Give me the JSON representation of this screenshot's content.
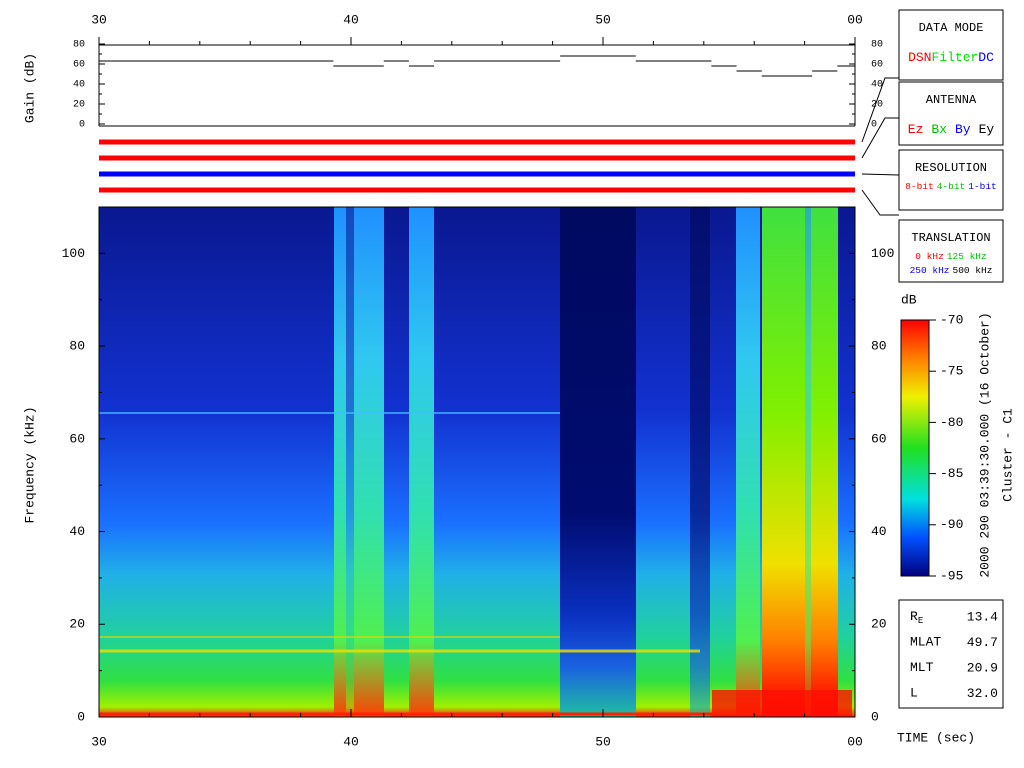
{
  "chart_data": [
    {
      "type": "step",
      "ylabel": "Gain (dB)",
      "color": "#000000",
      "xlim": [
        30,
        60
      ],
      "xticks": [
        30,
        40,
        50,
        {
          "value": 60,
          "label": "00"
        }
      ],
      "xminorticks": [
        32,
        34,
        36,
        38,
        42,
        44,
        46,
        48,
        52,
        54,
        56,
        58
      ],
      "ylim": [
        0,
        80
      ],
      "yticks": [
        0,
        20,
        40,
        60,
        80
      ],
      "yminorticks": [
        10,
        30,
        50,
        70
      ],
      "x": [
        30,
        39.3,
        41.3,
        42.3,
        43.3,
        48.3,
        51.3,
        54.3,
        55.3,
        56.3,
        58.3,
        59.3
      ],
      "values": [
        63,
        58,
        63,
        58,
        63,
        68,
        63,
        58,
        53,
        48,
        53,
        58
      ]
    },
    {
      "type": "spectrogram",
      "ylabel": "Frequency (kHz)",
      "xlabel": "TIME (sec)",
      "xlim": [
        30,
        60
      ],
      "xticks": [
        30,
        40,
        50,
        {
          "value": 60,
          "label": "00"
        }
      ],
      "xminorticks": [
        32,
        34,
        36,
        38,
        42,
        44,
        46,
        48,
        52,
        54,
        56,
        58
      ],
      "ylim": [
        0,
        110
      ],
      "yticks": [
        0,
        20,
        40,
        60,
        80,
        100
      ],
      "yminorticks": [
        10,
        30,
        50,
        70,
        90
      ]
    },
    {
      "type": "colorbar",
      "title": "dB",
      "ylim": [
        -95,
        -70
      ],
      "yticks": [
        -95,
        -90,
        -85,
        -80,
        -75,
        -70
      ]
    }
  ],
  "annotation": {
    "date": "2000 290 03:39:30.000 (16 October)",
    "spacecraft": "Cluster - C1"
  },
  "panels": [
    {
      "title": "DATA MODE",
      "rows": [
        [
          {
            "text": "DSN",
            "color": "#ff0000"
          },
          {
            "text": "Filter",
            "color": "#00e000"
          },
          {
            "text": "DC",
            "color": "#0000ff"
          }
        ]
      ]
    },
    {
      "title": "ANTENNA",
      "rows": [
        [
          {
            "text": "Ez",
            "color": "#ff0000"
          },
          {
            "text": "Bx",
            "color": "#00c000"
          },
          {
            "text": "By",
            "color": "#0000ff"
          },
          {
            "text": "Ey",
            "color": "#000000"
          }
        ]
      ]
    },
    {
      "title": "RESOLUTION",
      "rows": [
        [
          {
            "text": "8-bit",
            "color": "#ff0000"
          },
          {
            "text": "4-bit",
            "color": "#00c000"
          },
          {
            "text": "1-bit",
            "color": "#0000ff"
          }
        ]
      ]
    },
    {
      "title": "TRANSLATION",
      "rows": [
        [
          {
            "text": "0 kHz",
            "color": "#ff0000"
          },
          {
            "text": "125 kHz",
            "color": "#00c000"
          }
        ],
        [
          {
            "text": "250 kHz",
            "color": "#0000ff"
          },
          {
            "text": "500 kHz",
            "color": "#000000"
          }
        ]
      ]
    }
  ],
  "ephemeris": [
    {
      "label": "R",
      "sub": "E",
      "value": "13.4"
    },
    {
      "label": "MLAT",
      "value": "49.7"
    },
    {
      "label": "MLT",
      "value": "20.9"
    },
    {
      "label": "L",
      "value": "32.0"
    }
  ]
}
